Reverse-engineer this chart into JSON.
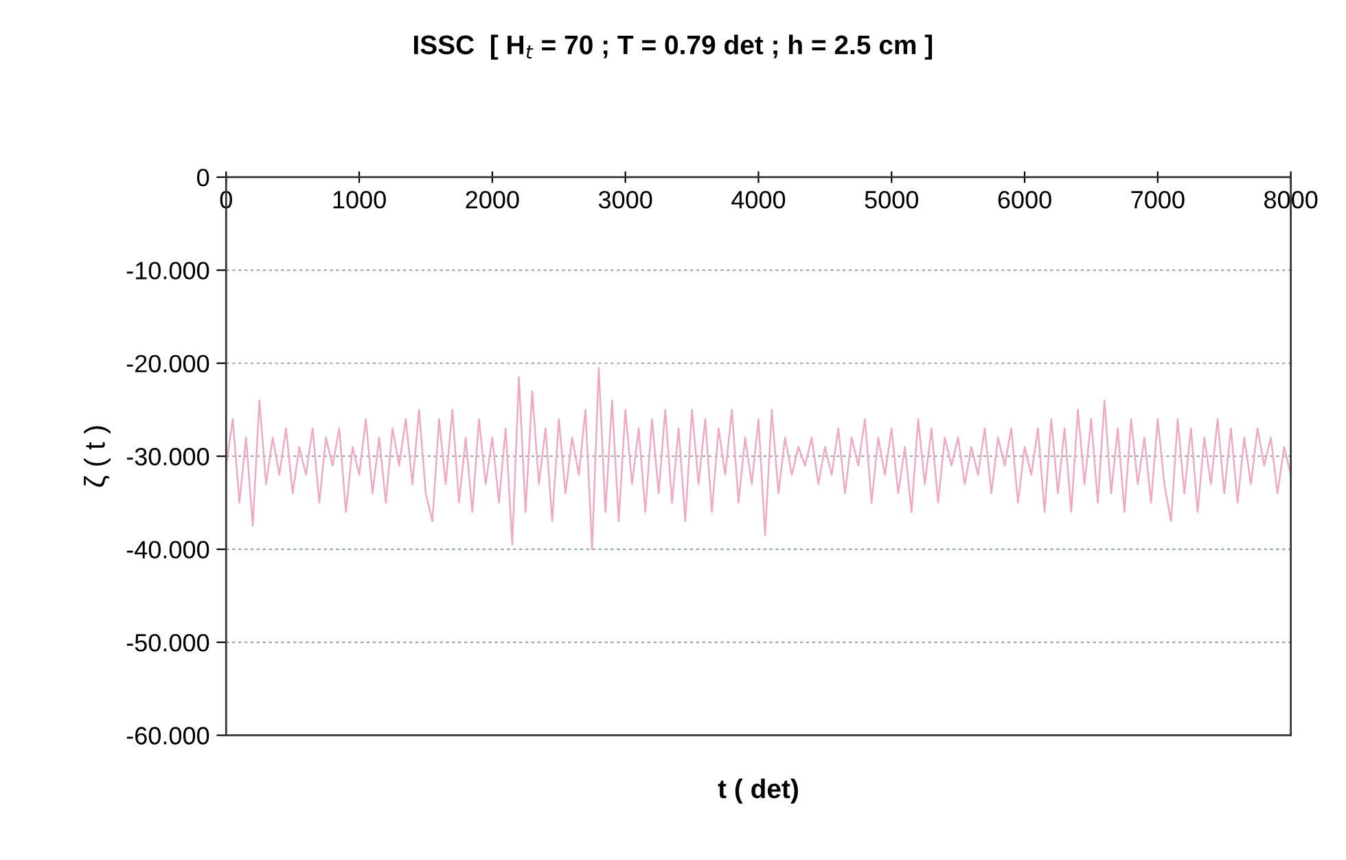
{
  "chart_data": {
    "type": "line",
    "title": "ISSC  [ H$_{t}$ = 70 ; T = 0.79 det ; h = 2.5 cm ]",
    "xlabel": "t ( det)",
    "ylabel": "ζ ( t )",
    "xlim": [
      0,
      8000
    ],
    "xticks": [
      0,
      1000,
      2000,
      3000,
      4000,
      5000,
      6000,
      7000,
      8000
    ],
    "ylim": [
      -60,
      0
    ],
    "yticks": [
      0,
      {
        "value": -10,
        "label": "-10.000"
      },
      {
        "value": -20,
        "label": "-20.000"
      },
      {
        "value": -30,
        "label": "-30.000"
      },
      {
        "value": -40,
        "label": "-40.000"
      },
      {
        "value": -50,
        "label": "-50.000"
      },
      {
        "value": -60,
        "label": "-60.000"
      }
    ],
    "grid": "y",
    "legend": false,
    "marker": "none",
    "line_style": "solid",
    "series": [
      {
        "color": "#f0a8c4",
        "x": [
          0,
          50,
          100,
          150,
          200,
          250,
          300,
          350,
          400,
          450,
          500,
          550,
          600,
          650,
          700,
          750,
          800,
          850,
          900,
          950,
          1000,
          1050,
          1100,
          1150,
          1200,
          1250,
          1300,
          1350,
          1400,
          1450,
          1500,
          1550,
          1600,
          1650,
          1700,
          1750,
          1800,
          1850,
          1900,
          1950,
          2000,
          2050,
          2100,
          2150,
          2200,
          2250,
          2300,
          2350,
          2400,
          2450,
          2500,
          2550,
          2600,
          2650,
          2700,
          2750,
          2800,
          2850,
          2900,
          2950,
          3000,
          3050,
          3100,
          3150,
          3200,
          3250,
          3300,
          3350,
          3400,
          3450,
          3500,
          3550,
          3600,
          3650,
          3700,
          3750,
          3800,
          3850,
          3900,
          3950,
          4000,
          4050,
          4100,
          4150,
          4200,
          4250,
          4300,
          4350,
          4400,
          4450,
          4500,
          4550,
          4600,
          4650,
          4700,
          4750,
          4800,
          4850,
          4900,
          4950,
          5000,
          5050,
          5100,
          5150,
          5200,
          5250,
          5300,
          5350,
          5400,
          5450,
          5500,
          5550,
          5600,
          5650,
          5700,
          5750,
          5800,
          5850,
          5900,
          5950,
          6000,
          6050,
          6100,
          6150,
          6200,
          6250,
          6300,
          6350,
          6400,
          6450,
          6500,
          6550,
          6600,
          6650,
          6700,
          6750,
          6800,
          6850,
          6900,
          6950,
          7000,
          7050,
          7100,
          7150,
          7200,
          7250,
          7300,
          7350,
          7400,
          7450,
          7500,
          7550,
          7600,
          7650,
          7700,
          7750,
          7800,
          7850,
          7900,
          7950,
          8000
        ],
        "values": [
          -31,
          -26,
          -35,
          -28,
          -37.5,
          -24,
          -33,
          -28,
          -32,
          -27,
          -34,
          -29,
          -32,
          -27,
          -35,
          -28,
          -31,
          -27,
          -36,
          -29,
          -32,
          -26,
          -34,
          -28,
          -35,
          -27,
          -31,
          -26,
          -33,
          -25,
          -34,
          -37,
          -26,
          -33,
          -25,
          -35,
          -28,
          -36,
          -26,
          -33,
          -28,
          -35,
          -27,
          -39.5,
          -21.5,
          -36,
          -23,
          -33,
          -27,
          -37,
          -26,
          -34,
          -28,
          -32,
          -25,
          -40,
          -20.5,
          -36,
          -24,
          -37,
          -25,
          -33,
          -27,
          -36,
          -26,
          -34,
          -25,
          -35,
          -27,
          -37,
          -25,
          -33,
          -26,
          -36,
          -27,
          -32,
          -25,
          -35,
          -28,
          -33,
          -26,
          -38.5,
          -25,
          -34,
          -28,
          -32,
          -29,
          -31,
          -28,
          -33,
          -29,
          -32,
          -27,
          -34,
          -28,
          -31,
          -26,
          -35,
          -28,
          -32,
          -27,
          -34,
          -29,
          -36,
          -26,
          -33,
          -27,
          -35,
          -28,
          -31,
          -28,
          -33,
          -29,
          -32,
          -27,
          -34,
          -28,
          -31,
          -27,
          -35,
          -29,
          -32,
          -27,
          -36,
          -26,
          -34,
          -27,
          -36,
          -25,
          -33,
          -26,
          -35,
          -24,
          -34,
          -27,
          -36,
          -26,
          -33,
          -28,
          -35,
          -26,
          -33,
          -37,
          -26,
          -34,
          -27,
          -36,
          -28,
          -33,
          -26,
          -34,
          -27,
          -35,
          -28,
          -33,
          -27,
          -31,
          -28,
          -34,
          -29,
          -32
        ]
      }
    ]
  }
}
